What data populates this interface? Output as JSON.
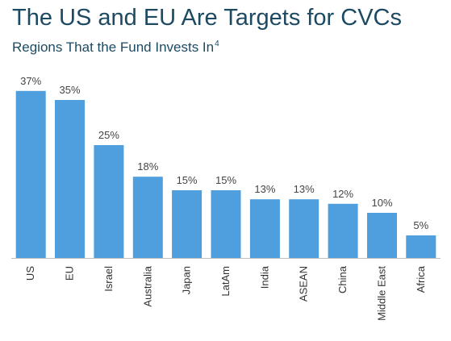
{
  "title": "The US and EU Are Targets for CVCs",
  "subtitle": "Regions That the Fund Invests In",
  "subtitle_note": "4",
  "colors": {
    "bar": "#4f9fdf",
    "axis": "#bfbfbf",
    "title": "#1c4a63"
  },
  "chart_data": {
    "type": "bar",
    "title": "The US and EU Are Targets for CVCs",
    "subtitle": "Regions That the Fund Invests In",
    "xlabel": "",
    "ylabel": "",
    "unit": "%",
    "grid": false,
    "categories": [
      "US",
      "EU",
      "Israel",
      "Australia",
      "Japan",
      "LatAm",
      "India",
      "ASEAN",
      "China",
      "Middle East",
      "Africa"
    ],
    "values": [
      37,
      35,
      25,
      18,
      15,
      15,
      13,
      13,
      12,
      10,
      5
    ],
    "labels": [
      "37%",
      "35%",
      "25%",
      "18%",
      "15%",
      "15%",
      "13%",
      "13%",
      "12%",
      "10%",
      "5%"
    ]
  }
}
